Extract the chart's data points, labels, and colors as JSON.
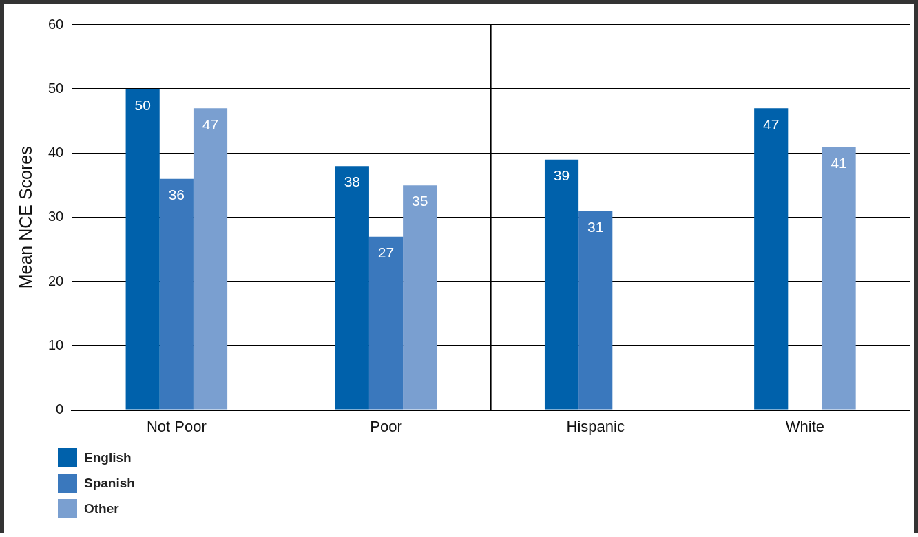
{
  "chart_data": {
    "type": "bar",
    "ylabel": "Mean NCE Scores",
    "categories": [
      "Not Poor",
      "Poor",
      "Hispanic",
      "White"
    ],
    "series": [
      {
        "name": "English",
        "color": "#0061ab",
        "values": [
          50,
          38,
          39,
          47
        ]
      },
      {
        "name": "Spanish",
        "color": "#3a78bd",
        "values": [
          36,
          27,
          31,
          null
        ]
      },
      {
        "name": "Other",
        "color": "#7a9fd0",
        "values": [
          47,
          35,
          null,
          41
        ]
      }
    ],
    "ylim": [
      0,
      60
    ],
    "yticks": [
      0,
      10,
      20,
      30,
      40,
      50,
      60
    ],
    "grid": "y",
    "legend": "bottom left",
    "data_labels": true
  }
}
